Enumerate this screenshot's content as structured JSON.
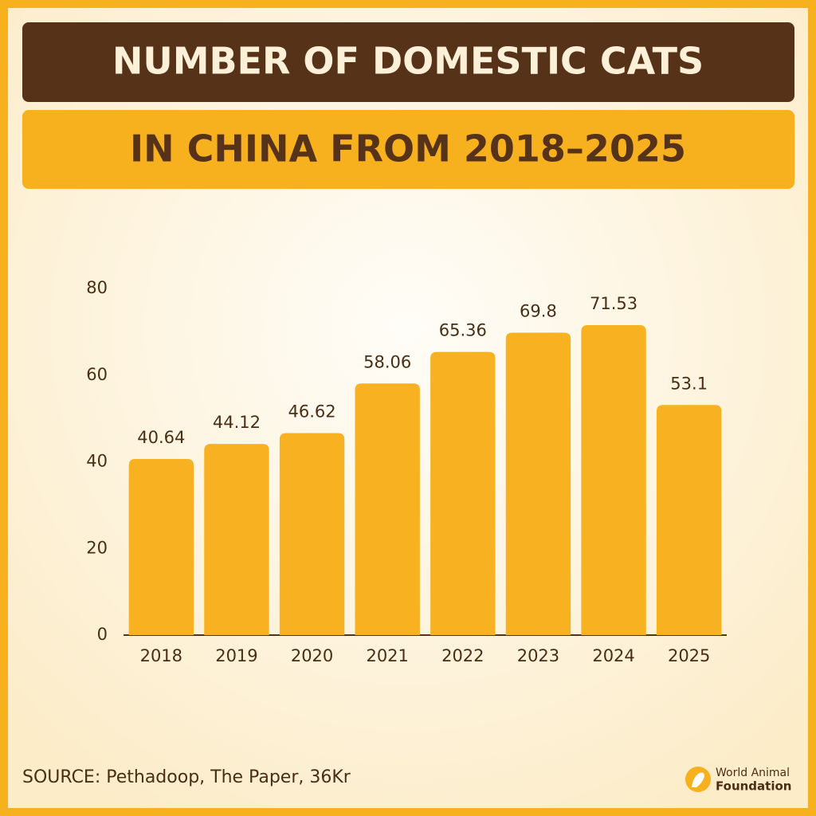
{
  "chart_data": {
    "type": "bar",
    "title": "NUMBER OF DOMESTIC CATS",
    "subtitle": "IN CHINA FROM 2018–2025",
    "categories": [
      "2018",
      "2019",
      "2020",
      "2021",
      "2022",
      "2023",
      "2024",
      "2025"
    ],
    "values": [
      40.64,
      44.12,
      46.62,
      58.06,
      65.36,
      69.8,
      71.53,
      53.1
    ],
    "color": "#f8b120",
    "ylim": [
      0,
      80
    ],
    "yticks": [
      0,
      20,
      40,
      60,
      80
    ],
    "grid": false,
    "source": "SOURCE: Pethadoop, The Paper, 36Kr"
  },
  "branding": {
    "line1": "World Animal",
    "line2": "Foundation"
  }
}
